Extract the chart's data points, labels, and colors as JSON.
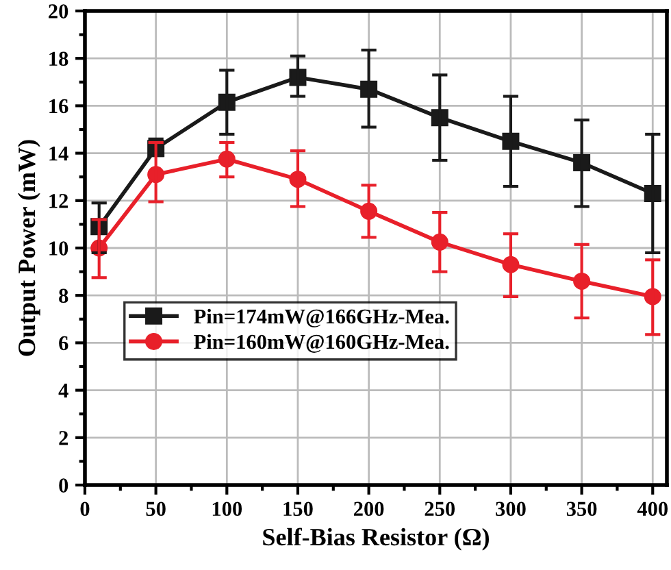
{
  "chart_data": {
    "type": "line",
    "xlabel": "Self-Bias Resistor (Ω)",
    "ylabel": "Output Power (mW)",
    "x": [
      10,
      50,
      100,
      150,
      200,
      250,
      300,
      350,
      400
    ],
    "xlim": [
      0,
      410
    ],
    "xticks": [
      0,
      50,
      100,
      150,
      200,
      250,
      300,
      350,
      400
    ],
    "ylim": [
      0,
      20
    ],
    "yticks": [
      0,
      2,
      4,
      6,
      8,
      10,
      12,
      14,
      16,
      18,
      20
    ],
    "grid": true,
    "legend": "left",
    "line_style": "solid",
    "series": [
      {
        "name": "Pin=174mW@166GHz-Mea.",
        "color": "#1a1a1a",
        "marker": "square",
        "values": [
          10.9,
          14.2,
          16.15,
          17.2,
          16.7,
          15.5,
          14.5,
          13.6,
          12.3
        ],
        "errors": [
          [
            9.8,
            11.9
          ],
          [
            13.9,
            14.6
          ],
          [
            14.8,
            17.5
          ],
          [
            16.4,
            18.1
          ],
          [
            15.1,
            18.35
          ],
          [
            13.7,
            17.3
          ],
          [
            12.6,
            16.4
          ],
          [
            11.75,
            15.4
          ],
          [
            9.8,
            14.8
          ]
        ]
      },
      {
        "name": "Pin=160mW@160GHz-Mea.",
        "color": "#e8202a",
        "marker": "circle",
        "values": [
          10.0,
          13.1,
          13.75,
          12.9,
          11.55,
          10.25,
          9.3,
          8.6,
          7.95
        ],
        "errors": [
          [
            8.75,
            11.2
          ],
          [
            11.95,
            14.45
          ],
          [
            13.0,
            14.45
          ],
          [
            11.75,
            14.1
          ],
          [
            10.45,
            12.65
          ],
          [
            9.0,
            11.5
          ],
          [
            7.95,
            10.6
          ],
          [
            7.05,
            10.15
          ],
          [
            6.35,
            9.5
          ]
        ]
      }
    ]
  }
}
